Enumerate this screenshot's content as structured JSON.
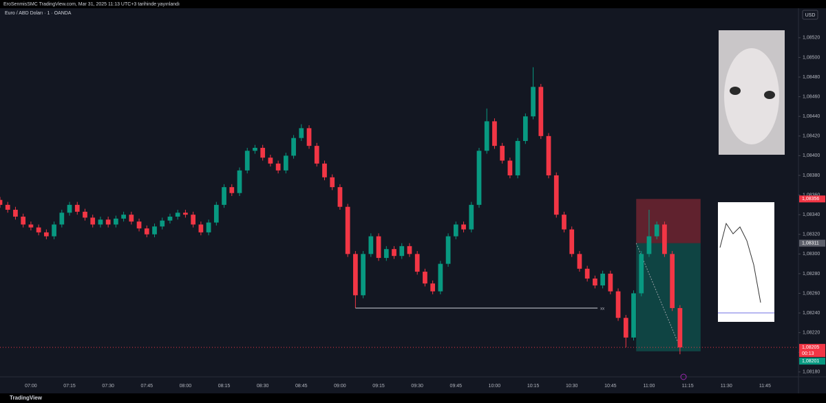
{
  "header": "EroSenmisSMC TradingView.com, Mar 31, 2025 11:13 UTC+3 tarihinde yayınlandı",
  "footer": "TradingView",
  "chart_data": {
    "type": "candlestick",
    "title": "Euro / ABD Doları · 1 · OANDA",
    "currency": "USD",
    "up_color": "#089981",
    "down_color": "#f23645",
    "grid": false,
    "x": [
      "06:48",
      "06:51",
      "06:54",
      "06:57",
      "07:00",
      "07:03",
      "07:06",
      "07:09",
      "07:12",
      "07:15",
      "07:18",
      "07:21",
      "07:24",
      "07:27",
      "07:30",
      "07:33",
      "07:36",
      "07:39",
      "07:42",
      "07:45",
      "07:48",
      "07:51",
      "07:54",
      "07:57",
      "08:00",
      "08:03",
      "08:06",
      "08:09",
      "08:12",
      "08:15",
      "08:18",
      "08:21",
      "08:24",
      "08:27",
      "08:30",
      "08:33",
      "08:36",
      "08:39",
      "08:42",
      "08:45",
      "08:48",
      "08:51",
      "08:54",
      "08:57",
      "09:00",
      "09:03",
      "09:06",
      "09:09",
      "09:12",
      "09:15",
      "09:18",
      "09:21",
      "09:24",
      "09:27",
      "09:30",
      "09:33",
      "09:36",
      "09:39",
      "09:42",
      "09:45",
      "09:48",
      "09:51",
      "09:54",
      "09:57",
      "10:00",
      "10:03",
      "10:06",
      "10:09",
      "10:12",
      "10:15",
      "10:18",
      "10:21",
      "10:24",
      "10:27",
      "10:30",
      "10:33",
      "10:36",
      "10:39",
      "10:42",
      "10:45",
      "10:48",
      "10:51",
      "10:54",
      "10:57",
      "11:00",
      "11:03",
      "11:06",
      "11:09",
      "11:12"
    ],
    "open": [
      1.08355,
      1.0835,
      1.08345,
      1.08338,
      1.0833,
      1.08327,
      1.08322,
      1.08318,
      1.0833,
      1.08342,
      1.0835,
      1.08343,
      1.08337,
      1.0833,
      1.08335,
      1.0833,
      1.08336,
      1.0834,
      1.08333,
      1.08326,
      1.0832,
      1.08328,
      1.08334,
      1.08338,
      1.08342,
      1.0834,
      1.0833,
      1.08322,
      1.08332,
      1.0835,
      1.08368,
      1.08362,
      1.08385,
      1.08405,
      1.08408,
      1.08398,
      1.08392,
      1.08385,
      1.084,
      1.08418,
      1.08428,
      1.0841,
      1.08392,
      1.08378,
      1.08368,
      1.08348,
      1.083,
      1.08258,
      1.083,
      1.08318,
      1.08296,
      1.08305,
      1.08298,
      1.08308,
      1.083,
      1.08282,
      1.0827,
      1.08262,
      1.0829,
      1.08318,
      1.0833,
      1.08325,
      1.0835,
      1.08405,
      1.08435,
      1.0841,
      1.08395,
      1.0838,
      1.08415,
      1.0844,
      1.0847,
      1.0842,
      1.0838,
      1.0834,
      1.08325,
      1.083,
      1.08285,
      1.08275,
      1.08268,
      1.0828,
      1.08262,
      1.08235,
      1.08215,
      1.0826,
      1.083,
      1.08318,
      1.0833,
      1.083,
      1.08245
    ],
    "high": [
      1.08358,
      1.08353,
      1.08348,
      1.08341,
      1.08333,
      1.0833,
      1.08325,
      1.08333,
      1.08345,
      1.08353,
      1.08353,
      1.08346,
      1.0834,
      1.08338,
      1.08338,
      1.08339,
      1.08343,
      1.08343,
      1.08336,
      1.08329,
      1.08331,
      1.08337,
      1.08341,
      1.08345,
      1.08345,
      1.08343,
      1.08333,
      1.08335,
      1.08353,
      1.08371,
      1.08371,
      1.08388,
      1.08408,
      1.08411,
      1.08411,
      1.08401,
      1.08395,
      1.08403,
      1.08421,
      1.08432,
      1.08431,
      1.08413,
      1.08395,
      1.08381,
      1.08371,
      1.08351,
      1.08303,
      1.08303,
      1.08321,
      1.08321,
      1.08308,
      1.08308,
      1.08311,
      1.08311,
      1.08303,
      1.08285,
      1.08273,
      1.08293,
      1.08321,
      1.08333,
      1.08333,
      1.08353,
      1.08408,
      1.08448,
      1.08438,
      1.08413,
      1.08398,
      1.08418,
      1.08443,
      1.0849,
      1.08473,
      1.08423,
      1.08383,
      1.08343,
      1.08328,
      1.08303,
      1.08288,
      1.08278,
      1.08283,
      1.08283,
      1.08265,
      1.08238,
      1.08263,
      1.08303,
      1.08345,
      1.08333,
      1.08333,
      1.08303,
      1.08248
    ],
    "low": [
      1.08347,
      1.08342,
      1.08335,
      1.08327,
      1.08324,
      1.08319,
      1.08315,
      1.08315,
      1.08327,
      1.08339,
      1.0834,
      1.08334,
      1.08327,
      1.08327,
      1.08327,
      1.08327,
      1.08333,
      1.0833,
      1.08323,
      1.08317,
      1.08317,
      1.08325,
      1.08331,
      1.08335,
      1.08337,
      1.08327,
      1.08319,
      1.08319,
      1.08329,
      1.08347,
      1.08359,
      1.08359,
      1.08382,
      1.08402,
      1.08395,
      1.08389,
      1.08382,
      1.08382,
      1.08397,
      1.08415,
      1.08407,
      1.08389,
      1.08375,
      1.08365,
      1.08345,
      1.08297,
      1.08245,
      1.08255,
      1.08297,
      1.08293,
      1.08293,
      1.08295,
      1.08295,
      1.08297,
      1.08279,
      1.08267,
      1.08259,
      1.08259,
      1.08287,
      1.08315,
      1.08322,
      1.08322,
      1.08347,
      1.08402,
      1.08407,
      1.08392,
      1.08377,
      1.08377,
      1.08412,
      1.08437,
      1.08417,
      1.08377,
      1.08337,
      1.08322,
      1.08297,
      1.08282,
      1.08272,
      1.08265,
      1.08265,
      1.08259,
      1.08232,
      1.08205,
      1.08212,
      1.08257,
      1.08297,
      1.08315,
      1.08297,
      1.08242,
      1.08198
    ],
    "close": [
      1.0835,
      1.08345,
      1.08338,
      1.0833,
      1.08327,
      1.08322,
      1.08318,
      1.0833,
      1.08342,
      1.0835,
      1.08343,
      1.08337,
      1.0833,
      1.08335,
      1.0833,
      1.08336,
      1.0834,
      1.08333,
      1.08326,
      1.0832,
      1.08328,
      1.08334,
      1.08338,
      1.08342,
      1.0834,
      1.0833,
      1.08322,
      1.08332,
      1.0835,
      1.08368,
      1.08362,
      1.08385,
      1.08405,
      1.08408,
      1.08398,
      1.08392,
      1.08385,
      1.084,
      1.08418,
      1.08428,
      1.0841,
      1.08392,
      1.08378,
      1.08368,
      1.08348,
      1.083,
      1.08258,
      1.083,
      1.08318,
      1.08296,
      1.08305,
      1.08298,
      1.08308,
      1.083,
      1.08282,
      1.0827,
      1.08262,
      1.0829,
      1.08318,
      1.0833,
      1.08325,
      1.0835,
      1.08405,
      1.08435,
      1.0841,
      1.08395,
      1.0838,
      1.08415,
      1.0844,
      1.0847,
      1.0842,
      1.0838,
      1.0834,
      1.08325,
      1.083,
      1.08285,
      1.08275,
      1.08268,
      1.0828,
      1.08262,
      1.08235,
      1.08215,
      1.0826,
      1.083,
      1.08318,
      1.0833,
      1.083,
      1.08245,
      1.08205
    ],
    "xlim": [
      "06:48",
      "11:58"
    ],
    "xticks": [
      "07:00",
      "07:15",
      "07:30",
      "07:45",
      "08:00",
      "08:15",
      "08:30",
      "08:45",
      "09:00",
      "09:15",
      "09:30",
      "09:45",
      "10:00",
      "10:15",
      "10:30",
      "10:45",
      "11:00",
      "11:15",
      "11:30",
      "11:45"
    ],
    "ylim": [
      1.08175,
      1.0855
    ],
    "yticks": [
      {
        "value": 1.0852,
        "label": "1,08520"
      },
      {
        "value": 1.085,
        "label": "1,08500"
      },
      {
        "value": 1.0848,
        "label": "1,08480"
      },
      {
        "value": 1.0846,
        "label": "1,08460"
      },
      {
        "value": 1.0844,
        "label": "1,08440"
      },
      {
        "value": 1.0842,
        "label": "1,08420"
      },
      {
        "value": 1.084,
        "label": "1,08400"
      },
      {
        "value": 1.0838,
        "label": "1,08380"
      },
      {
        "value": 1.0836,
        "label": "1,08360"
      },
      {
        "value": 1.0834,
        "label": "1,08340"
      },
      {
        "value": 1.0832,
        "label": "1,08320"
      },
      {
        "value": 1.083,
        "label": "1,08300"
      },
      {
        "value": 1.0828,
        "label": "1,08280"
      },
      {
        "value": 1.0826,
        "label": "1,08260"
      },
      {
        "value": 1.0824,
        "label": "1,08240"
      },
      {
        "value": 1.0822,
        "label": "1,08220"
      },
      {
        "value": 1.082,
        "label": "1,08200"
      },
      {
        "value": 1.0818,
        "label": "1,08180"
      }
    ],
    "level": {
      "value": 1.08245,
      "start": "09:06",
      "end": "10:40",
      "label": "xx"
    },
    "position": {
      "start": "10:55",
      "end": "11:20",
      "stop": {
        "value": 1.08356,
        "label": "1,08356"
      },
      "entry": {
        "value": 1.08311,
        "label": "1,08311"
      },
      "target": {
        "value": 1.08201,
        "label": "1,08201"
      }
    },
    "last_price": {
      "value": 1.08205,
      "label": "1,08205",
      "countdown": "00:13"
    }
  }
}
